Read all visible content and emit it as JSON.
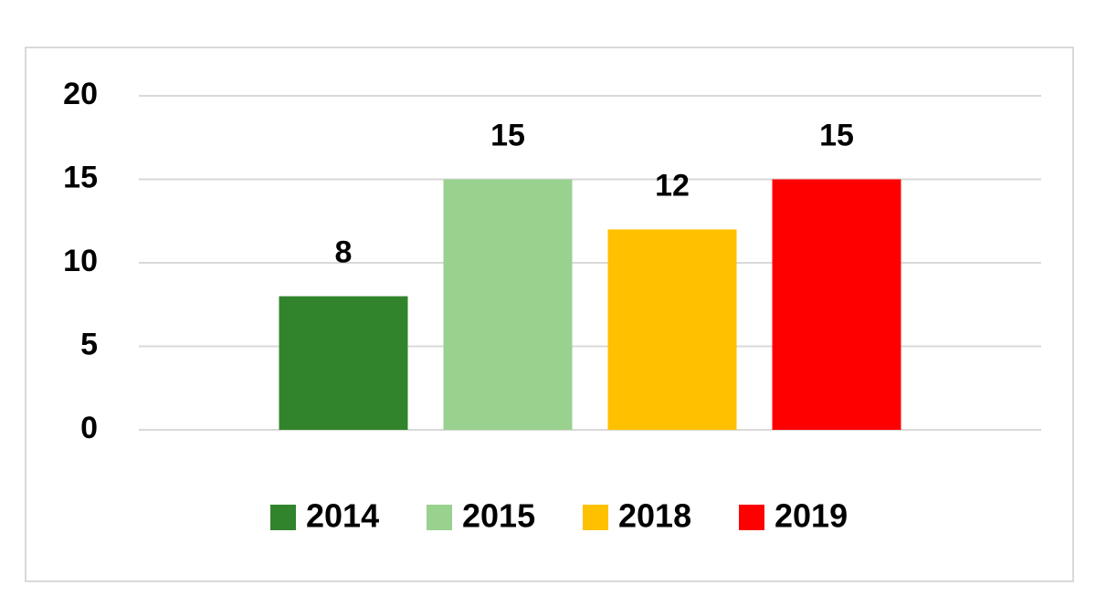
{
  "chart_data": {
    "type": "bar",
    "categories": [
      null
    ],
    "series": [
      {
        "name": "2014",
        "color": "#31842c",
        "values": [
          8
        ]
      },
      {
        "name": "2015",
        "color": "#99d18f",
        "values": [
          15
        ]
      },
      {
        "name": "2018",
        "color": "#ffc000",
        "values": [
          12
        ]
      },
      {
        "name": "2019",
        "color": "#ff0000",
        "values": [
          15
        ]
      }
    ],
    "ylim": [
      0,
      20
    ],
    "yticks": [
      0,
      5,
      10,
      15,
      20
    ],
    "grid": true,
    "legend": "bottom"
  }
}
